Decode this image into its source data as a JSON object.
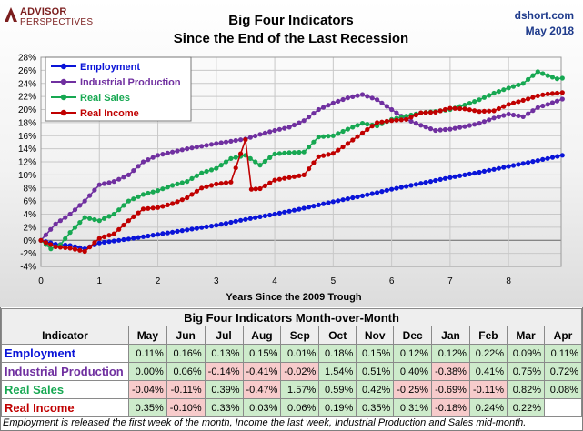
{
  "logo": {
    "line1": "ADVISOR",
    "line2": "PERSPECTIVES"
  },
  "source": {
    "site": "dshort.com",
    "date": "May 2018"
  },
  "chart_data": {
    "type": "line",
    "title_line1": "Big Four Indicators",
    "title_line2": "Since the End of the Last Recession",
    "xlabel": "Years Since the 2009 Trough",
    "ylabel": "",
    "xlim": [
      0,
      8.9
    ],
    "ylim": [
      -4,
      28
    ],
    "x_ticks": [
      0,
      1,
      2,
      3,
      4,
      5,
      6,
      7,
      8
    ],
    "y_ticks": [
      "-4%",
      "-2%",
      "0%",
      "2%",
      "4%",
      "6%",
      "8%",
      "10%",
      "12%",
      "14%",
      "16%",
      "18%",
      "20%",
      "22%",
      "24%",
      "26%",
      "28%"
    ],
    "grid": true,
    "legend_position": "top-left",
    "series": [
      {
        "name": "Employment",
        "color": "#0a14d8",
        "points": [
          [
            0,
            0
          ],
          [
            0.25,
            -0.6
          ],
          [
            0.5,
            -0.8
          ],
          [
            0.75,
            -1.3
          ],
          [
            1,
            -0.4
          ],
          [
            1.5,
            0.2
          ],
          [
            2,
            0.9
          ],
          [
            2.5,
            1.6
          ],
          [
            3,
            2.3
          ],
          [
            3.5,
            3.2
          ],
          [
            4,
            4.0
          ],
          [
            4.5,
            4.9
          ],
          [
            5,
            5.9
          ],
          [
            5.5,
            6.8
          ],
          [
            6,
            7.8
          ],
          [
            6.5,
            8.7
          ],
          [
            7,
            9.6
          ],
          [
            7.5,
            10.4
          ],
          [
            8,
            11.3
          ],
          [
            8.5,
            12.2
          ],
          [
            8.92,
            13.0
          ]
        ]
      },
      {
        "name": "Industrial Production",
        "color": "#7030a0",
        "points": [
          [
            0,
            0
          ],
          [
            0.25,
            2.5
          ],
          [
            0.5,
            4.0
          ],
          [
            0.75,
            6.0
          ],
          [
            1,
            8.5
          ],
          [
            1.25,
            9.0
          ],
          [
            1.5,
            10.0
          ],
          [
            1.75,
            12.0
          ],
          [
            2,
            13.0
          ],
          [
            2.5,
            14.0
          ],
          [
            3,
            14.8
          ],
          [
            3.5,
            15.5
          ],
          [
            3.75,
            16.2
          ],
          [
            4,
            16.8
          ],
          [
            4.25,
            17.3
          ],
          [
            4.5,
            18.3
          ],
          [
            4.75,
            20.0
          ],
          [
            5,
            21.0
          ],
          [
            5.25,
            21.8
          ],
          [
            5.5,
            22.3
          ],
          [
            5.75,
            21.5
          ],
          [
            6,
            20.0
          ],
          [
            6.25,
            18.5
          ],
          [
            6.5,
            17.6
          ],
          [
            6.75,
            16.8
          ],
          [
            7,
            17.0
          ],
          [
            7.25,
            17.4
          ],
          [
            7.5,
            17.9
          ],
          [
            7.75,
            18.7
          ],
          [
            8,
            19.3
          ],
          [
            8.25,
            18.9
          ],
          [
            8.5,
            20.3
          ],
          [
            8.67,
            20.8
          ],
          [
            8.83,
            21.3
          ],
          [
            8.92,
            21.6
          ]
        ]
      },
      {
        "name": "Real Sales",
        "color": "#17a852",
        "points": [
          [
            0,
            0
          ],
          [
            0.17,
            -1.3
          ],
          [
            0.33,
            -0.7
          ],
          [
            0.5,
            1.2
          ],
          [
            0.75,
            3.5
          ],
          [
            1,
            3.0
          ],
          [
            1.25,
            4.0
          ],
          [
            1.5,
            6.0
          ],
          [
            1.75,
            7.0
          ],
          [
            2,
            7.6
          ],
          [
            2.25,
            8.4
          ],
          [
            2.5,
            9.0
          ],
          [
            2.75,
            10.3
          ],
          [
            3,
            11.0
          ],
          [
            3.25,
            12.5
          ],
          [
            3.5,
            13.0
          ],
          [
            3.75,
            11.5
          ],
          [
            4,
            13.2
          ],
          [
            4.25,
            13.4
          ],
          [
            4.5,
            13.5
          ],
          [
            4.75,
            15.8
          ],
          [
            5,
            16.0
          ],
          [
            5.25,
            17.0
          ],
          [
            5.5,
            17.9
          ],
          [
            5.75,
            17.5
          ],
          [
            6,
            18.5
          ],
          [
            6.25,
            19.0
          ],
          [
            6.5,
            19.5
          ],
          [
            6.75,
            19.7
          ],
          [
            7,
            20.0
          ],
          [
            7.25,
            20.7
          ],
          [
            7.5,
            21.5
          ],
          [
            7.75,
            22.5
          ],
          [
            8,
            23.3
          ],
          [
            8.25,
            24.0
          ],
          [
            8.5,
            25.8
          ],
          [
            8.67,
            25.2
          ],
          [
            8.83,
            24.7
          ],
          [
            8.92,
            24.8
          ]
        ]
      },
      {
        "name": "Real Income",
        "color": "#c00000",
        "points": [
          [
            0,
            0
          ],
          [
            0.25,
            -1.0
          ],
          [
            0.5,
            -1.2
          ],
          [
            0.75,
            -1.7
          ],
          [
            1,
            0.3
          ],
          [
            1.25,
            1.0
          ],
          [
            1.5,
            3.0
          ],
          [
            1.75,
            4.8
          ],
          [
            2,
            5.0
          ],
          [
            2.25,
            5.6
          ],
          [
            2.5,
            6.5
          ],
          [
            2.75,
            8.0
          ],
          [
            3,
            8.6
          ],
          [
            3.25,
            8.9
          ],
          [
            3.5,
            15.4
          ],
          [
            3.6,
            7.8
          ],
          [
            3.75,
            7.9
          ],
          [
            4,
            9.2
          ],
          [
            4.25,
            9.6
          ],
          [
            4.5,
            10.0
          ],
          [
            4.75,
            12.8
          ],
          [
            5,
            13.3
          ],
          [
            5.25,
            14.8
          ],
          [
            5.5,
            16.4
          ],
          [
            5.75,
            18.0
          ],
          [
            6,
            18.3
          ],
          [
            6.25,
            18.5
          ],
          [
            6.5,
            19.5
          ],
          [
            6.75,
            19.6
          ],
          [
            7,
            20.2
          ],
          [
            7.25,
            20.1
          ],
          [
            7.5,
            19.7
          ],
          [
            7.75,
            19.8
          ],
          [
            8,
            20.8
          ],
          [
            8.25,
            21.4
          ],
          [
            8.5,
            22.1
          ],
          [
            8.67,
            22.4
          ],
          [
            8.83,
            22.5
          ],
          [
            8.92,
            22.6
          ]
        ]
      }
    ]
  },
  "table": {
    "title": "Big Four Indicators Month-over-Month",
    "header_label": "Indicator",
    "months": [
      "May",
      "Jun",
      "Jul",
      "Aug",
      "Sep",
      "Oct",
      "Nov",
      "Dec",
      "Jan",
      "Feb",
      "Mar",
      "Apr"
    ],
    "rows": [
      {
        "name": "Employment",
        "color": "#0a14d8",
        "values": [
          "0.11%",
          "0.16%",
          "0.13%",
          "0.15%",
          "0.01%",
          "0.18%",
          "0.15%",
          "0.12%",
          "0.12%",
          "0.22%",
          "0.09%",
          "0.11%"
        ]
      },
      {
        "name": "Industrial Production",
        "color": "#7030a0",
        "values": [
          "0.00%",
          "0.06%",
          "-0.14%",
          "-0.41%",
          "-0.02%",
          "1.54%",
          "0.51%",
          "0.40%",
          "-0.38%",
          "0.41%",
          "0.75%",
          "0.72%"
        ]
      },
      {
        "name": "Real Sales",
        "color": "#17a852",
        "values": [
          "-0.04%",
          "-0.11%",
          "0.39%",
          "-0.47%",
          "1.57%",
          "0.59%",
          "0.42%",
          "-0.25%",
          "-0.69%",
          "-0.11%",
          "0.82%",
          "0.08%"
        ]
      },
      {
        "name": "Real Income",
        "color": "#c00000",
        "values": [
          "0.35%",
          "-0.10%",
          "0.33%",
          "0.03%",
          "0.06%",
          "0.19%",
          "0.35%",
          "0.31%",
          "-0.18%",
          "0.24%",
          "0.22%",
          ""
        ]
      }
    ]
  },
  "footnote": "Employment is released the first week of the month, Income the last week, Industrial Production and Sales mid-month."
}
